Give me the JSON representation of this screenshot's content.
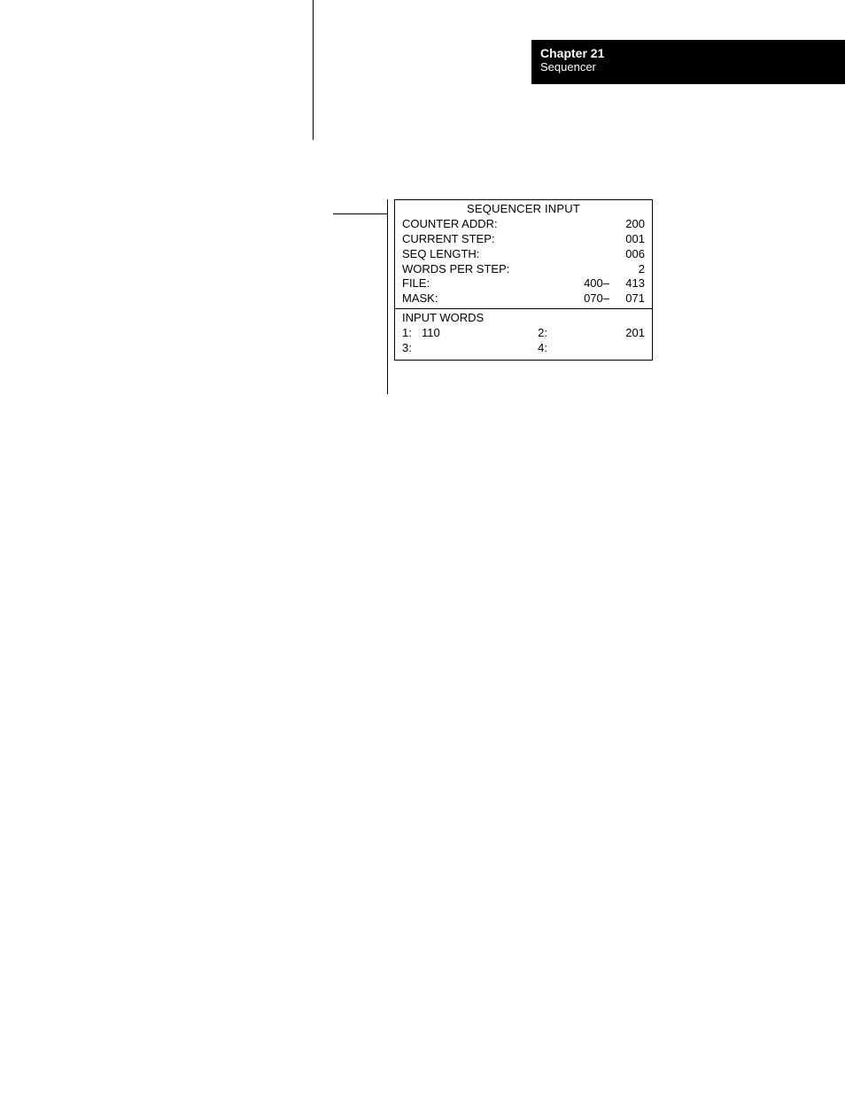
{
  "header": {
    "chapter": "Chapter 21",
    "subtitle": "Sequencer"
  },
  "block": {
    "title": "SEQUENCER INPUT",
    "rows": [
      {
        "label": "COUNTER ADDR:",
        "v1": "",
        "v2": "200"
      },
      {
        "label": "CURRENT STEP:",
        "v1": "",
        "v2": "001"
      },
      {
        "label": "SEQ LENGTH:",
        "v1": "",
        "v2": "006"
      },
      {
        "label": "WORDS PER STEP:",
        "v1": "",
        "v2": "2"
      },
      {
        "label": "FILE:",
        "v1": "400–",
        "v2": "413"
      },
      {
        "label": "MASK:",
        "v1": "070–",
        "v2": "071"
      }
    ],
    "input_words_label": "INPUT WORDS",
    "iw_rows": [
      {
        "c1": "1:",
        "c2": "110",
        "c3": "2:",
        "c4": "201"
      },
      {
        "c1": "3:",
        "c2": "",
        "c3": "4:",
        "c4": ""
      }
    ]
  },
  "colors": {
    "page_bg": "#ffffff",
    "ink": "#000000",
    "header_bg": "#000000",
    "header_text": "#ffffff"
  }
}
